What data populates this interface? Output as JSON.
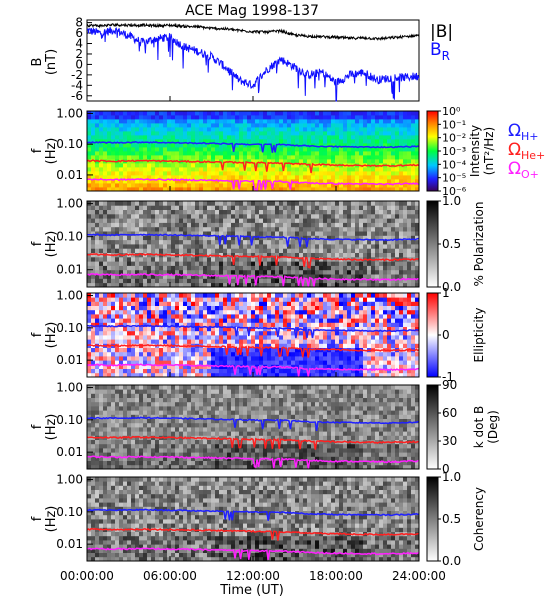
{
  "title": "ACE Mag 1998-137",
  "xlabel": "Time (UT)",
  "xticks": [
    "00:00:00",
    "06:00:00",
    "12:00:00",
    "18:00:00",
    "24:00:00"
  ],
  "colors": {
    "btotal": "#000000",
    "br": "#1010ff",
    "h_plus": "#2020ff",
    "he_plus": "#ff2020",
    "o_plus": "#ff20ff"
  },
  "legend": {
    "b_total": "|B|",
    "b_r_main": "B",
    "b_r_sub": "R",
    "omega_symbol": "Ω",
    "h_sub": "H+",
    "he_sub": "He+",
    "o_sub": "O+"
  },
  "chart_data": [
    {
      "type": "line",
      "panel": "field",
      "ylabel_main": "B",
      "ylabel_unit": "(nT)",
      "ylim": [
        -7,
        8.5
      ],
      "yticks": [
        "8",
        "6",
        "4",
        "2",
        "0",
        "-2",
        "-4",
        "-6"
      ],
      "xlim_hours": [
        0,
        24
      ],
      "series": [
        {
          "name": "|B|",
          "x": [
            0,
            1,
            2,
            3,
            4,
            5,
            6,
            7,
            8,
            9,
            10,
            11,
            12,
            13,
            14,
            15,
            16,
            17,
            18,
            19,
            20,
            21,
            22,
            23,
            24
          ],
          "y": [
            7.5,
            7.4,
            7.6,
            7.5,
            7.5,
            7.4,
            7.5,
            7.3,
            7.2,
            6.9,
            6.8,
            6.5,
            6.3,
            6.2,
            6.4,
            5.6,
            5.4,
            5.3,
            5.2,
            5.0,
            5.1,
            4.9,
            5.1,
            5.3,
            5.6
          ]
        },
        {
          "name": "B_R",
          "x": [
            0,
            1,
            2,
            3,
            4,
            5,
            6,
            7,
            8,
            9,
            10,
            11,
            12,
            13,
            14,
            15,
            16,
            17,
            18,
            19,
            20,
            21,
            22,
            23,
            24
          ],
          "y": [
            6.5,
            6.0,
            6.6,
            5.5,
            4.2,
            4.9,
            5.2,
            3.4,
            2.5,
            1.5,
            -0.5,
            -3.0,
            -4.0,
            -1.0,
            1.0,
            -0.5,
            -2.0,
            -1.5,
            -3.5,
            -2.0,
            -1.5,
            -3.0,
            -2.5,
            -2.5,
            -2.2
          ]
        }
      ]
    },
    {
      "type": "heatmap",
      "panel": "intensity",
      "ylabel_main": "f",
      "ylabel_unit": "(Hz)",
      "yticks": [
        "1.00",
        "0.10",
        "0.01"
      ],
      "scale": "log",
      "ylim_hz": [
        0.003,
        1.2
      ],
      "colorbar_label": "Intensity",
      "colorbar_unit": "(nT²/Hz)",
      "colorbar_ticks": [
        "10⁰",
        "10⁻¹",
        "10⁻²",
        "10⁻³",
        "10⁻⁴",
        "10⁻⁵",
        "10⁻⁶"
      ]
    },
    {
      "type": "heatmap",
      "panel": "polarization",
      "ylabel_main": "f",
      "ylabel_unit": "(Hz)",
      "yticks": [
        "1.00",
        "0.10",
        "0.01"
      ],
      "scale": "log",
      "ylim_hz": [
        0.003,
        1.2
      ],
      "colorbar_label": "% Polarization",
      "colorbar_unit": "",
      "colorbar_ticks": [
        "1.0",
        "0.5",
        "0.0"
      ]
    },
    {
      "type": "heatmap",
      "panel": "ellipticity",
      "ylabel_main": "f",
      "ylabel_unit": "(Hz)",
      "yticks": [
        "1.00",
        "0.10",
        "0.01"
      ],
      "scale": "log",
      "ylim_hz": [
        0.003,
        1.2
      ],
      "colorbar_label": "Ellipticity",
      "colorbar_unit": "",
      "colorbar_ticks": [
        "1",
        "0",
        "-1"
      ]
    },
    {
      "type": "heatmap",
      "panel": "kdotb",
      "ylabel_main": "f",
      "ylabel_unit": "(Hz)",
      "yticks": [
        "1.00",
        "0.10",
        "0.01"
      ],
      "scale": "log",
      "ylim_hz": [
        0.003,
        1.2
      ],
      "colorbar_label": "k dot B",
      "colorbar_unit": "(Deg)",
      "colorbar_ticks": [
        "90",
        "60",
        "30",
        "0"
      ]
    },
    {
      "type": "heatmap",
      "panel": "coherency",
      "ylabel_main": "f",
      "ylabel_unit": "(Hz)",
      "yticks": [
        "1.00",
        "0.10",
        "0.01"
      ],
      "scale": "log",
      "ylim_hz": [
        0.003,
        1.2
      ],
      "colorbar_label": "Coherency",
      "colorbar_unit": "",
      "colorbar_ticks": [
        "1.0",
        "0.5",
        "0.0"
      ]
    }
  ],
  "gyrofrequency_lines": {
    "x_hours": [
      0,
      2,
      4,
      6,
      8,
      10,
      12,
      14,
      16,
      18,
      20,
      22,
      24
    ],
    "h_plus_hz": [
      0.115,
      0.112,
      0.116,
      0.112,
      0.108,
      0.104,
      0.098,
      0.097,
      0.087,
      0.083,
      0.081,
      0.08,
      0.085
    ],
    "he_plus_hz": [
      0.029,
      0.028,
      0.029,
      0.028,
      0.027,
      0.026,
      0.025,
      0.024,
      0.022,
      0.021,
      0.02,
      0.02,
      0.021
    ],
    "o_plus_hz": [
      0.0072,
      0.007,
      0.0072,
      0.007,
      0.0068,
      0.0065,
      0.0062,
      0.0061,
      0.0055,
      0.0052,
      0.0051,
      0.005,
      0.0053
    ]
  }
}
